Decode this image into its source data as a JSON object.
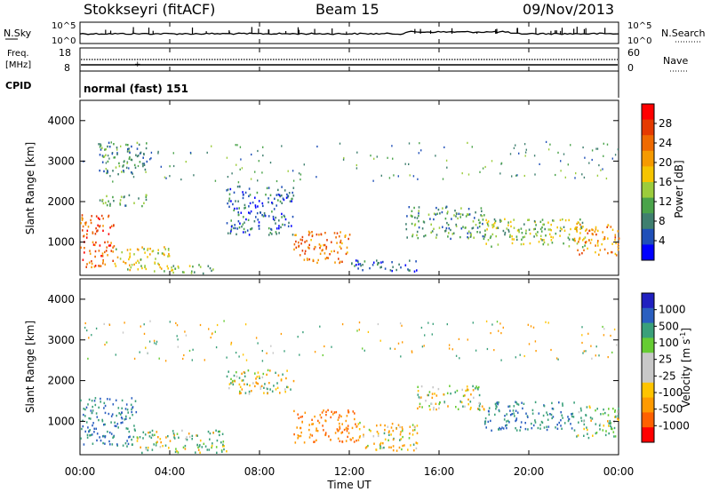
{
  "header": {
    "station": "Stokkseyri (fitACF)",
    "beam": "Beam 15",
    "date": "09/Nov/2013"
  },
  "noise_panel": {
    "left_label": "N.Sky",
    "left_ticks": [
      "10^5",
      "10^0"
    ],
    "right_ticks": [
      "10^5",
      "10^0"
    ],
    "right_label": "N.Search"
  },
  "freq_panel": {
    "label_top": "Freq.",
    "label_unit": "[MHz]",
    "left_ticks": [
      "18",
      "8"
    ],
    "right_ticks": [
      "60",
      "0"
    ],
    "right_label": "Nave"
  },
  "cpid_panel": {
    "label": "CPID",
    "mode_text": "normal (fast) 151"
  },
  "colors": {
    "power_scale": [
      "#0000ff",
      "#1f4fb8",
      "#3f7f6f",
      "#4aa34a",
      "#9ccc3c",
      "#f5c400",
      "#f59a00",
      "#ef6a00",
      "#e53a00",
      "#ff0000"
    ],
    "velocity_scale": [
      "#ff0000",
      "#ff6000",
      "#ff9a00",
      "#ffc400",
      "#c8c8c8",
      "#c8c8c8",
      "#66cc33",
      "#3aa07a",
      "#2a5fc0",
      "#2020c0"
    ]
  },
  "chart_data": [
    {
      "type": "heatmap",
      "title": "",
      "quantity": "Power",
      "xlabel": "",
      "ylabel": "Slant Range [km]",
      "x_range": [
        "00:00",
        "24:00"
      ],
      "y_range": [
        180,
        4500
      ],
      "y_ticks": [
        "4000",
        "3000",
        "2000",
        "1000"
      ],
      "x_ticks": [
        "00:00",
        "04:00",
        "08:00",
        "12:00",
        "16:00",
        "20:00",
        "00:00"
      ],
      "colorbar": {
        "label": "Power [dB]",
        "range": [
          0,
          30
        ],
        "tick_labels": [
          "28",
          "24",
          "20",
          "16",
          "12",
          "8",
          "4"
        ]
      },
      "echo_regions": [
        {
          "t0": 0.0,
          "t1": 1.5,
          "r0": 400,
          "r1": 1700,
          "level": 24
        },
        {
          "t0": 1.5,
          "t1": 4.0,
          "r0": 300,
          "r1": 900,
          "level": 16
        },
        {
          "t0": 4.0,
          "t1": 6.0,
          "r0": 250,
          "r1": 500,
          "level": 12
        },
        {
          "t0": 0.8,
          "t1": 3.0,
          "r0": 2700,
          "r1": 3500,
          "level": 8
        },
        {
          "t0": 0.8,
          "t1": 3.0,
          "r0": 1900,
          "r1": 2200,
          "level": 10
        },
        {
          "t0": 6.5,
          "t1": 9.5,
          "r0": 1200,
          "r1": 2400,
          "level": 6
        },
        {
          "t0": 9.5,
          "t1": 12.0,
          "r0": 500,
          "r1": 1300,
          "level": 22
        },
        {
          "t0": 12.0,
          "t1": 15.0,
          "r0": 300,
          "r1": 600,
          "level": 6
        },
        {
          "t0": 14.5,
          "t1": 18.0,
          "r0": 1100,
          "r1": 1900,
          "level": 9
        },
        {
          "t0": 18.0,
          "t1": 22.5,
          "r0": 900,
          "r1": 1600,
          "level": 12
        },
        {
          "t0": 22.0,
          "t1": 24.0,
          "r0": 700,
          "r1": 1500,
          "level": 20
        }
      ]
    },
    {
      "type": "heatmap",
      "title": "",
      "quantity": "Velocity",
      "xlabel": "Time UT",
      "ylabel": "Slant Range [km]",
      "x_range": [
        "00:00",
        "24:00"
      ],
      "y_range": [
        180,
        4500
      ],
      "y_ticks": [
        "4000",
        "3000",
        "2000",
        "1000"
      ],
      "x_ticks": [
        "00:00",
        "04:00",
        "08:00",
        "12:00",
        "16:00",
        "20:00",
        "00:00"
      ],
      "colorbar": {
        "label": "Velocity [m s^-1]",
        "tick_labels": [
          "1000",
          "500",
          "100",
          "25",
          "-25",
          "-100",
          "-500",
          "-1000"
        ]
      },
      "echo_regions": [
        {
          "t0": 0.0,
          "t1": 2.5,
          "r0": 400,
          "r1": 1600,
          "level": 500
        },
        {
          "t0": 2.5,
          "t1": 6.5,
          "r0": 250,
          "r1": 800,
          "level": 100
        },
        {
          "t0": 6.5,
          "t1": 9.5,
          "r0": 1700,
          "r1": 2300,
          "level": 0
        },
        {
          "t0": 9.5,
          "t1": 12.3,
          "r0": 500,
          "r1": 1300,
          "level": -500
        },
        {
          "t0": 12.3,
          "t1": 15.0,
          "r0": 300,
          "r1": 1000,
          "level": -100
        },
        {
          "t0": 15.0,
          "t1": 18.0,
          "r0": 1300,
          "r1": 1900,
          "level": 0
        },
        {
          "t0": 18.0,
          "t1": 22.0,
          "r0": 800,
          "r1": 1500,
          "level": 500
        },
        {
          "t0": 22.0,
          "t1": 24.0,
          "r0": 600,
          "r1": 1400,
          "level": 100
        }
      ]
    }
  ]
}
